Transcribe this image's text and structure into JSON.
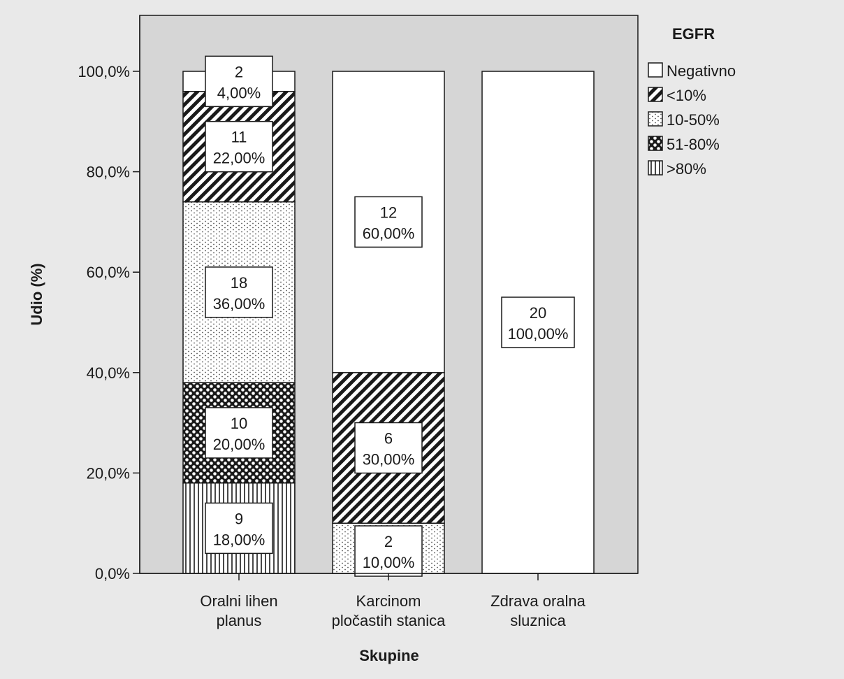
{
  "chart_data": {
    "type": "bar",
    "stacked": true,
    "percent_stacked": true,
    "title": "",
    "xlabel": "Skupine",
    "ylabel": "Udio (%)",
    "ylim": [
      0,
      100
    ],
    "y_ticks": [
      "0,0%",
      "20,0%",
      "40,0%",
      "60,0%",
      "80,0%",
      "100,0%"
    ],
    "y_tick_values": [
      0,
      20,
      40,
      60,
      80,
      100
    ],
    "grid": false,
    "legend": {
      "title": "EGFR",
      "placement": "top-right"
    },
    "categories": [
      [
        "Oralni lihen",
        "planus"
      ],
      [
        "Karcinom",
        "pločastih stanica"
      ],
      [
        "Zdrava oralna",
        "sluznica"
      ]
    ],
    "series": [
      {
        "name": ">80%",
        "pattern": "vertical-lines",
        "values": [
          18,
          0,
          0
        ],
        "counts": [
          9,
          0,
          0
        ],
        "labels": [
          "18,00%",
          "",
          ""
        ]
      },
      {
        "name": "51-80%",
        "pattern": "checker",
        "values": [
          20,
          0,
          0
        ],
        "counts": [
          10,
          0,
          0
        ],
        "labels": [
          "20,00%",
          "",
          ""
        ]
      },
      {
        "name": "10-50%",
        "pattern": "dots",
        "values": [
          36,
          10,
          0
        ],
        "counts": [
          18,
          2,
          0
        ],
        "labels": [
          "36,00%",
          "10,00%",
          ""
        ]
      },
      {
        "name": "<10%",
        "pattern": "diagonal",
        "values": [
          22,
          30,
          0
        ],
        "counts": [
          11,
          6,
          0
        ],
        "labels": [
          "22,00%",
          "30,00%",
          ""
        ]
      },
      {
        "name": "Negativno",
        "pattern": "solid-white",
        "values": [
          4,
          60,
          100
        ],
        "counts": [
          2,
          12,
          20
        ],
        "labels": [
          "4,00%",
          "60,00%",
          "100,00%"
        ]
      }
    ],
    "legend_order": [
      "Negativno",
      "<10%",
      "10-50%",
      "51-80%",
      ">80%"
    ],
    "colors": {
      "plot_background": "#d6d6d6",
      "outer_background": "#e9e9e9",
      "bar_fill": "#ffffff",
      "ink": "#1a1a1a"
    }
  }
}
